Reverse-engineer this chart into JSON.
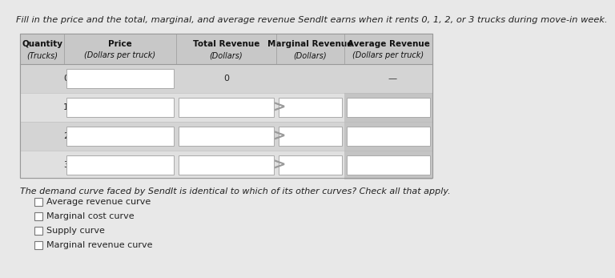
{
  "title": "Fill in the price and the total, marginal, and average revenue SendIt earns when it rents 0, 1, 2, or 3 trucks during move-in week.",
  "title_fontsize": 8.2,
  "fig_bg": "#e8e8e8",
  "table_header_bg": "#c8c8c8",
  "table_row_even": "#d4d4d4",
  "table_row_odd": "#e0e0e0",
  "table_border": "#999999",
  "input_box_bg": "#ffffff",
  "input_box_border": "#aaaaaa",
  "avg_rev_col_bg": "#cccccc",
  "rows": [
    0,
    1,
    2,
    3
  ],
  "question_text": "The demand curve faced by SendIt is identical to which of its other curves? Check all that apply.",
  "question_fontsize": 8.0,
  "checkboxes": [
    "Average revenue curve",
    "Marginal cost curve",
    "Supply curve",
    "Marginal revenue curve"
  ],
  "checkbox_fontsize": 8.0,
  "arrow_color": "#999999"
}
